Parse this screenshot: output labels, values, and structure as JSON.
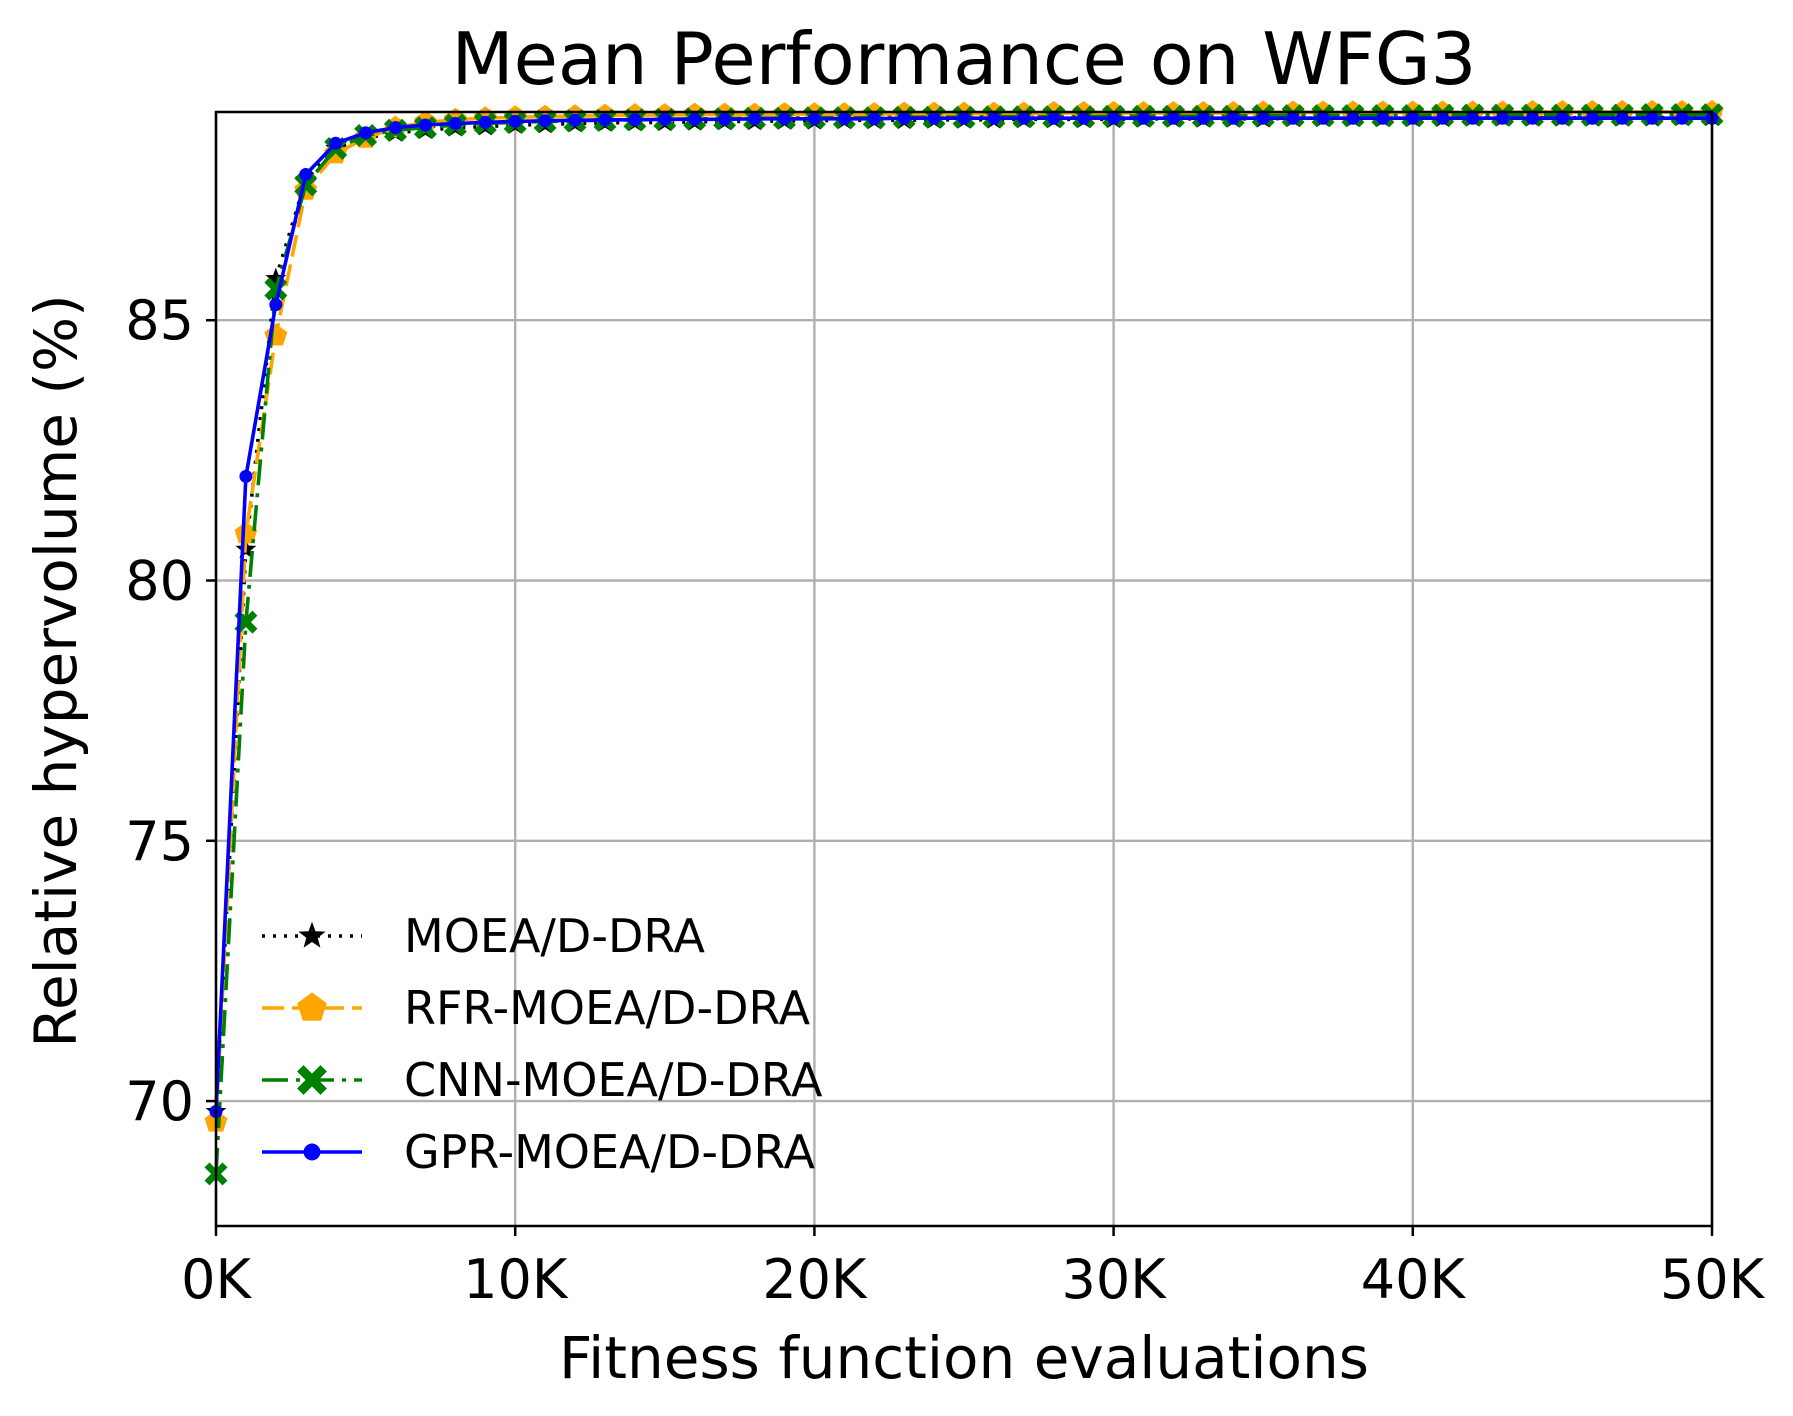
{
  "chart_data": {
    "type": "line",
    "title": "Mean Performance on WFG3",
    "xlabel": "Fitness function evaluations",
    "ylabel": "Relative hypervolume (%)",
    "xlim": [
      0,
      50000
    ],
    "ylim": [
      67.6,
      89.0
    ],
    "grid": true,
    "legend_position": "lower-left",
    "x_ticks": [
      {
        "value": 0,
        "label": "0K"
      },
      {
        "value": 10000,
        "label": "10K"
      },
      {
        "value": 20000,
        "label": "20K"
      },
      {
        "value": 30000,
        "label": "30K"
      },
      {
        "value": 40000,
        "label": "40K"
      },
      {
        "value": 50000,
        "label": "50K"
      }
    ],
    "y_ticks": [
      {
        "value": 70,
        "label": "70"
      },
      {
        "value": 75,
        "label": "75"
      },
      {
        "value": 80,
        "label": "80"
      },
      {
        "value": 85,
        "label": "85"
      }
    ],
    "x_step": 1000,
    "series": [
      {
        "name": "MOEA/D-DRA",
        "color": "#000000",
        "line_style": "dotted",
        "marker": "star",
        "values": [
          69.8,
          80.6,
          85.8,
          87.7,
          88.3,
          88.5,
          88.6,
          88.65,
          88.7,
          88.72,
          88.75,
          88.76,
          88.78,
          88.79,
          88.8,
          88.8,
          88.81,
          88.82,
          88.82,
          88.83,
          88.83,
          88.84,
          88.84,
          88.84,
          88.85,
          88.85,
          88.85,
          88.86,
          88.86,
          88.86,
          88.86,
          88.87,
          88.87,
          88.87,
          88.87,
          88.87,
          88.88,
          88.88,
          88.88,
          88.88,
          88.88,
          88.88,
          88.89,
          88.89,
          88.89,
          88.89,
          88.89,
          88.89,
          88.89,
          88.9,
          88.9
        ]
      },
      {
        "name": "RFR-MOEA/D-DRA",
        "color": "#FFA500",
        "line_style": "dashed",
        "marker": "pentagon",
        "values": [
          69.6,
          80.9,
          84.7,
          87.5,
          88.2,
          88.5,
          88.7,
          88.8,
          88.85,
          88.88,
          88.9,
          88.91,
          88.92,
          88.93,
          88.94,
          88.94,
          88.95,
          88.95,
          88.95,
          88.96,
          88.96,
          88.96,
          88.96,
          88.97,
          88.97,
          88.97,
          88.97,
          88.97,
          88.98,
          88.98,
          88.98,
          88.98,
          88.98,
          88.98,
          88.98,
          88.99,
          88.99,
          88.99,
          88.99,
          88.99,
          88.99,
          88.99,
          88.99,
          88.99,
          89.0,
          89.0,
          89.0,
          89.0,
          89.0,
          89.0,
          89.0
        ]
      },
      {
        "name": "CNN-MOEA/D-DRA",
        "color": "#008000",
        "line_style": "dashdot",
        "marker": "x",
        "values": [
          68.6,
          79.2,
          85.6,
          87.6,
          88.3,
          88.55,
          88.65,
          88.7,
          88.75,
          88.78,
          88.8,
          88.82,
          88.83,
          88.84,
          88.85,
          88.86,
          88.87,
          88.87,
          88.88,
          88.88,
          88.89,
          88.89,
          88.89,
          88.9,
          88.9,
          88.9,
          88.91,
          88.91,
          88.91,
          88.91,
          88.92,
          88.92,
          88.92,
          88.92,
          88.92,
          88.93,
          88.93,
          88.93,
          88.93,
          88.93,
          88.93,
          88.94,
          88.94,
          88.94,
          88.94,
          88.94,
          88.94,
          88.94,
          88.95,
          88.95,
          88.95
        ]
      },
      {
        "name": "GPR-MOEA/D-DRA",
        "color": "#0000FF",
        "line_style": "solid",
        "marker": "dot",
        "values": [
          69.8,
          82.0,
          85.3,
          87.8,
          88.4,
          88.6,
          88.7,
          88.75,
          88.78,
          88.8,
          88.82,
          88.83,
          88.84,
          88.85,
          88.85,
          88.86,
          88.86,
          88.86,
          88.87,
          88.87,
          88.87,
          88.87,
          88.87,
          88.88,
          88.88,
          88.88,
          88.88,
          88.88,
          88.88,
          88.88,
          88.88,
          88.88,
          88.88,
          88.88,
          88.88,
          88.88,
          88.88,
          88.88,
          88.88,
          88.88,
          88.88,
          88.88,
          88.88,
          88.88,
          88.88,
          88.88,
          88.88,
          88.88,
          88.88,
          88.88,
          88.88
        ]
      }
    ]
  }
}
